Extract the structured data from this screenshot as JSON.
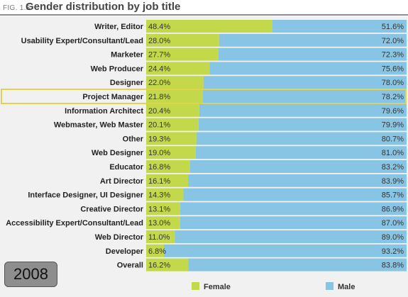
{
  "figure": {
    "label": "FIG. 1.3",
    "title": "Gender distribution by job title",
    "year": "2008"
  },
  "colors": {
    "female": "#c3d84a",
    "male": "#88c5e4",
    "highlight": "#e6d24a"
  },
  "chart_data": {
    "type": "bar",
    "orientation": "horizontal",
    "stacked": true,
    "title": "Gender distribution by job title",
    "xlim": [
      0,
      100
    ],
    "legend_position": "bottom",
    "highlighted_category": "Project Manager",
    "categories": [
      "Writer, Editor",
      "Usability Expert/Consultant/Lead",
      "Marketer",
      "Web Producer",
      "Designer",
      "Project Manager",
      "Information Architect",
      "Webmaster, Web Master",
      "Other",
      "Web Designer",
      "Educator",
      "Art Director",
      "Interface Designer, UI Designer",
      "Creative Director",
      "Accessibility Expert/Consultant/Lead",
      "Web Director",
      "Developer",
      "Overall"
    ],
    "series": [
      {
        "name": "Female",
        "values": [
          48.4,
          28.0,
          27.7,
          24.4,
          22.0,
          21.8,
          20.4,
          20.1,
          19.3,
          19.0,
          16.8,
          16.1,
          14.3,
          13.1,
          13.0,
          11.0,
          6.8,
          16.2
        ],
        "labels": [
          "48.4%",
          "28.0%",
          "27.7%",
          "24.4%",
          "22.0%",
          "21.8%",
          "20.4%",
          "20.1%",
          "19.3%",
          "19.0%",
          "16.8%",
          "16.1%",
          "14.3%",
          "13.1%",
          "13.0%",
          "11.0%",
          "6.8%",
          "16.2%"
        ]
      },
      {
        "name": "Male",
        "values": [
          51.6,
          72.0,
          72.3,
          75.6,
          78.0,
          78.2,
          79.6,
          79.9,
          80.7,
          81.0,
          83.2,
          83.9,
          85.7,
          86.9,
          87.0,
          89.0,
          93.2,
          83.8
        ],
        "labels": [
          "51.6%",
          "72.0%",
          "72.3%",
          "75.6%",
          "78.0%",
          "78.2%",
          "79.6%",
          "79.9%",
          "80.7%",
          "81.0%",
          "83.2%",
          "83.9%",
          "85.7%",
          "86.9%",
          "87.0%",
          "89.0%",
          "93.2%",
          "83.8%"
        ]
      }
    ]
  }
}
